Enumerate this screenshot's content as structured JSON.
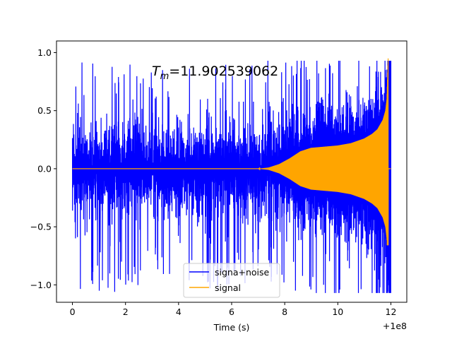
{
  "chart_data": {
    "type": "line",
    "annotation_prefix": "T",
    "annotation_sub": "m",
    "annotation_value": "=11.902539062",
    "xlabel": "Time (s)",
    "ylabel": "",
    "x_offset_label": "+1e8",
    "xlim": [
      -0.6,
      12.6
    ],
    "ylim": [
      -1.15,
      1.1
    ],
    "x_ticks": [
      0,
      2,
      4,
      6,
      8,
      10,
      12
    ],
    "x_tick_labels": [
      "0",
      "2",
      "4",
      "6",
      "8",
      "10",
      "12"
    ],
    "y_ticks": [
      -1.0,
      -0.5,
      0.0,
      0.5,
      1.0
    ],
    "y_tick_labels": [
      "−1.0",
      "−0.5",
      "0.0",
      "0.5",
      "1.0"
    ],
    "legend_position": "lower-center",
    "series": [
      {
        "name": "signa+noise",
        "color": "#0000ff",
        "description_points": {
          "x_range": [
            0,
            12
          ],
          "typical_amplitude": 0.6,
          "peak_positive": 0.93,
          "peak_negative": -1.07
        }
      },
      {
        "name": "signal",
        "color": "#ffa500",
        "envelope": {
          "x": [
            0,
            7.0,
            7.4,
            7.8,
            8.2,
            8.6,
            9.0,
            9.5,
            10.0,
            10.5,
            11.0,
            11.3,
            11.5,
            11.7,
            11.8,
            11.85,
            11.9,
            11.93
          ],
          "y": [
            0,
            0,
            0.01,
            0.04,
            0.09,
            0.15,
            0.18,
            0.19,
            0.2,
            0.22,
            0.26,
            0.3,
            0.34,
            0.42,
            0.5,
            0.6,
            0.98,
            1.0
          ]
        },
        "end_time": 11.9025,
        "peak_min": -0.66
      }
    ]
  }
}
